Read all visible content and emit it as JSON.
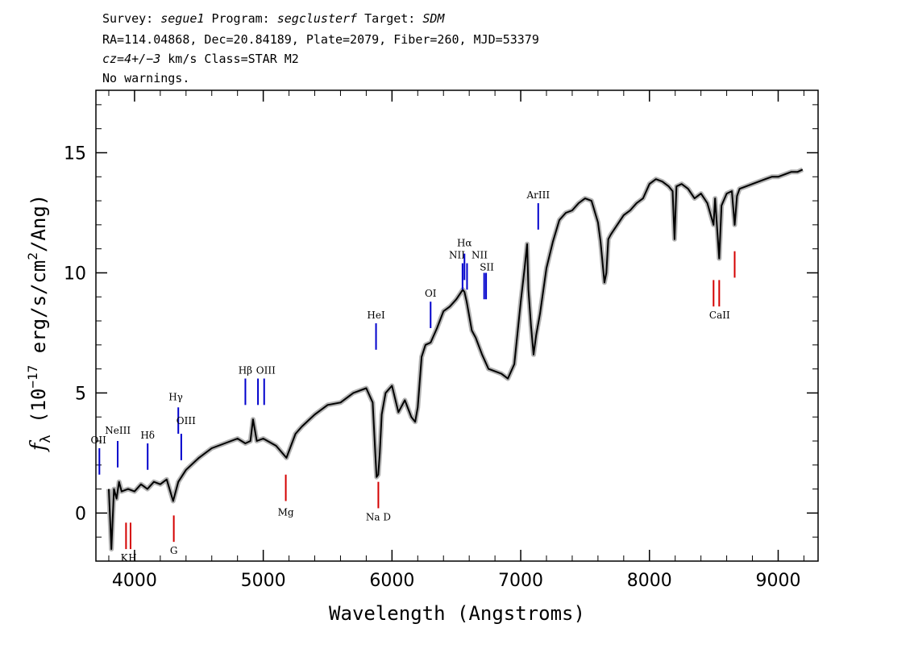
{
  "header": {
    "line1": {
      "survey_label": "Survey: ",
      "survey": "segue1",
      "program_label": " Program: ",
      "program": "segclusterf",
      "target_label": " Target: ",
      "target": "SDM"
    },
    "line2": "RA=114.04868, Dec=20.84189, Plate=2079, Fiber=260, MJD=53379",
    "line3": {
      "cz": "cz=4+/−3",
      "rest": " km/s Class=STAR M2"
    },
    "line4": "No warnings."
  },
  "chart_data": {
    "type": "line",
    "xlabel": "Wavelength (Angstroms)",
    "ylabel_parts": {
      "f": "f",
      "sub": "λ",
      "open": " (10",
      "exp": "−17",
      "mid": " erg/s/cm",
      "exp2": "2",
      "close": "/Ang)"
    },
    "xlim": [
      3700,
      9310
    ],
    "ylim": [
      -2,
      17.6
    ],
    "xticks": [
      4000,
      5000,
      6000,
      7000,
      8000,
      9000
    ],
    "yticks": [
      0,
      5,
      10,
      15
    ],
    "spectrum": {
      "color": "#000000",
      "error_color": "#b4b4b4",
      "x": [
        3800,
        3820,
        3840,
        3860,
        3880,
        3900,
        3950,
        4000,
        4050,
        4100,
        4150,
        4200,
        4250,
        4300,
        4340,
        4400,
        4500,
        4600,
        4700,
        4800,
        4861,
        4900,
        4920,
        4950,
        5000,
        5100,
        5180,
        5250,
        5300,
        5400,
        5500,
        5600,
        5700,
        5800,
        5850,
        5870,
        5880,
        5893,
        5905,
        5920,
        5950,
        6000,
        6050,
        6100,
        6150,
        6180,
        6200,
        6230,
        6260,
        6300,
        6350,
        6400,
        6450,
        6500,
        6550,
        6563,
        6580,
        6620,
        6650,
        6700,
        6750,
        6800,
        6850,
        6900,
        6950,
        7000,
        7030,
        7050,
        7060,
        7080,
        7100,
        7120,
        7150,
        7200,
        7250,
        7300,
        7350,
        7400,
        7450,
        7500,
        7550,
        7600,
        7620,
        7650,
        7665,
        7680,
        7700,
        7750,
        7800,
        7850,
        7900,
        7950,
        8000,
        8050,
        8100,
        8150,
        8180,
        8195,
        8210,
        8250,
        8300,
        8350,
        8400,
        8450,
        8498,
        8510,
        8542,
        8560,
        8600,
        8640,
        8662,
        8680,
        8700,
        8750,
        8800,
        8850,
        8900,
        8950,
        9000,
        9050,
        9100,
        9150,
        9190
      ],
      "y": [
        1.0,
        -1.5,
        1.0,
        0.6,
        1.3,
        0.9,
        1.0,
        0.9,
        1.2,
        1.0,
        1.3,
        1.2,
        1.4,
        0.5,
        1.3,
        1.8,
        2.3,
        2.7,
        2.9,
        3.1,
        2.9,
        3.0,
        3.9,
        3.0,
        3.1,
        2.8,
        2.3,
        3.3,
        3.6,
        4.1,
        4.5,
        4.6,
        5.0,
        5.2,
        4.6,
        2.5,
        1.5,
        1.6,
        2.5,
        4.1,
        5.0,
        5.3,
        4.2,
        4.7,
        4.0,
        3.8,
        4.4,
        6.5,
        7.0,
        7.1,
        7.7,
        8.4,
        8.6,
        8.9,
        9.3,
        9.2,
        8.8,
        7.6,
        7.3,
        6.6,
        6.0,
        5.9,
        5.8,
        5.6,
        6.2,
        8.8,
        10.2,
        11.2,
        9.3,
        7.8,
        6.6,
        7.4,
        8.3,
        10.2,
        11.3,
        12.2,
        12.5,
        12.6,
        12.9,
        13.1,
        13.0,
        12.1,
        11.3,
        9.6,
        10.0,
        11.4,
        11.6,
        12.0,
        12.4,
        12.6,
        12.9,
        13.1,
        13.7,
        13.9,
        13.8,
        13.6,
        13.4,
        11.4,
        13.6,
        13.7,
        13.5,
        13.1,
        13.3,
        12.9,
        12.0,
        13.1,
        10.6,
        12.8,
        13.3,
        13.4,
        12.0,
        13.2,
        13.5,
        13.6,
        13.7,
        13.8,
        13.9,
        14.0,
        14.0,
        14.1,
        14.2,
        14.2,
        14.3
      ]
    },
    "emission_lines": [
      {
        "label": "OII",
        "x": 3727,
        "y0": 1.6,
        "y1": 2.7,
        "lx": 3720,
        "ly": 2.9
      },
      {
        "label": "NeIII",
        "x": 3869,
        "y0": 1.9,
        "y1": 3.0,
        "lx": 3870,
        "ly": 3.3
      },
      {
        "label": "Hδ",
        "x": 4102,
        "y0": 1.8,
        "y1": 2.9,
        "lx": 4102,
        "ly": 3.1
      },
      {
        "label": "Hγ",
        "x": 4340,
        "y0": 3.3,
        "y1": 4.4,
        "lx": 4320,
        "ly": 4.7
      },
      {
        "label": "OIII",
        "x": 4363,
        "y0": 2.2,
        "y1": 3.3,
        "lx": 4400,
        "ly": 3.7
      },
      {
        "label": "Hβ",
        "x": 4861,
        "y0": 4.5,
        "y1": 5.6,
        "lx": 4861,
        "ly": 5.8
      },
      {
        "label": "OIII",
        "x": 4959,
        "y0": 4.5,
        "y1": 5.6,
        "lx": 5020,
        "ly": 5.8
      },
      {
        "label": "OIII",
        "x": 5007,
        "y0": 4.5,
        "y1": 5.6,
        "lx": null,
        "ly": null
      },
      {
        "label": "HeI",
        "x": 5876,
        "y0": 6.8,
        "y1": 7.9,
        "lx": 5876,
        "ly": 8.1
      },
      {
        "label": "OI",
        "x": 6300,
        "y0": 7.7,
        "y1": 8.8,
        "lx": 6300,
        "ly": 9.0
      },
      {
        "label": "NII",
        "x": 6548,
        "y0": 9.3,
        "y1": 10.4,
        "lx": 6505,
        "ly": 10.6
      },
      {
        "label": "Hα",
        "x": 6563,
        "y0": 9.7,
        "y1": 10.8,
        "lx": 6563,
        "ly": 11.1
      },
      {
        "label": "NII",
        "x": 6583,
        "y0": 9.3,
        "y1": 10.4,
        "lx": 6680,
        "ly": 10.6
      },
      {
        "label": "SII",
        "x": 6716,
        "y0": 8.9,
        "y1": 10.0,
        "lx": 6737,
        "ly": 10.1
      },
      {
        "label": "SII",
        "x": 6731,
        "y0": 8.9,
        "y1": 10.0,
        "lx": null,
        "ly": null
      },
      {
        "label": "ArIII",
        "x": 7136,
        "y0": 11.8,
        "y1": 12.9,
        "lx": 7136,
        "ly": 13.1
      }
    ],
    "absorption_lines": [
      {
        "label": "K",
        "x": 3934,
        "y0": -1.5,
        "y1": -0.4,
        "lx": 3920,
        "ly": -2.0
      },
      {
        "label": "H",
        "x": 3969,
        "y0": -1.5,
        "y1": -0.4,
        "lx": 3985,
        "ly": -2.0
      },
      {
        "label": "G",
        "x": 4305,
        "y0": -1.2,
        "y1": -0.1,
        "lx": 4305,
        "ly": -1.7
      },
      {
        "label": "Mg",
        "x": 5175,
        "y0": 0.5,
        "y1": 1.6,
        "lx": 5175,
        "ly": -0.1
      },
      {
        "label": "Na D",
        "x": 5894,
        "y0": 0.2,
        "y1": 1.3,
        "lx": 5894,
        "ly": -0.3
      },
      {
        "label": "CaII",
        "x": 8498,
        "y0": 8.6,
        "y1": 9.7,
        "lx": 8545,
        "ly": 8.1
      },
      {
        "label": "CaII",
        "x": 8542,
        "y0": 8.6,
        "y1": 9.7,
        "lx": null,
        "ly": null
      },
      {
        "label": "CaII",
        "x": 8662,
        "y0": 9.8,
        "y1": 10.9,
        "lx": null,
        "ly": null
      }
    ],
    "emission_color": "#0000cc",
    "absorption_color": "#d40000"
  }
}
